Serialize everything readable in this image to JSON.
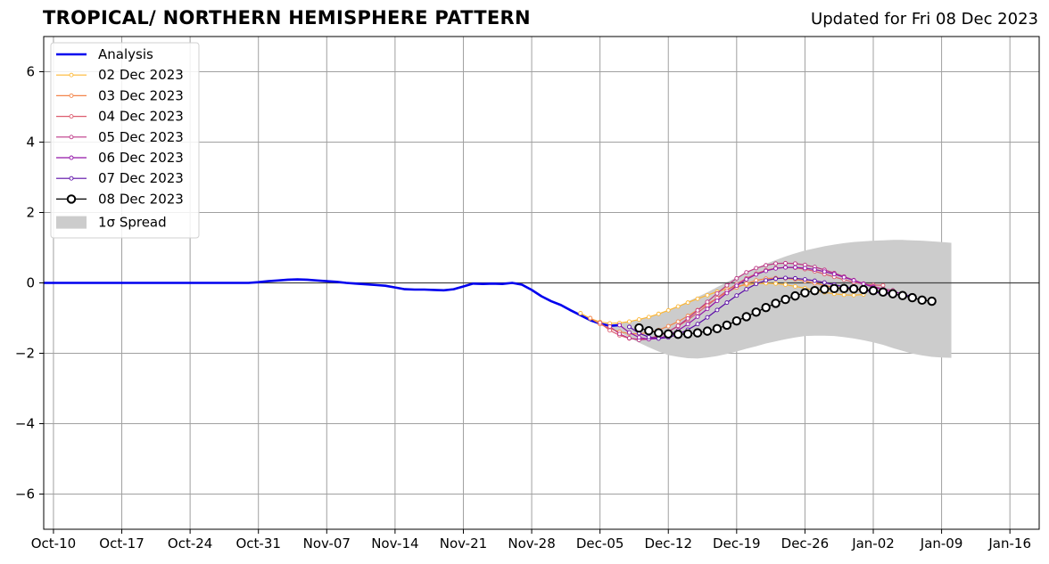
{
  "title": "TROPICAL/ NORTHERN HEMISPHERE PATTERN",
  "subtitle": "Updated for Fri 08 Dec 2023",
  "chart_data": {
    "type": "line",
    "title": "TROPICAL/ NORTHERN HEMISPHERE PATTERN",
    "xlabel": "",
    "ylabel": "",
    "x_tick_labels": [
      "Oct-10",
      "Oct-17",
      "Oct-24",
      "Oct-31",
      "Nov-07",
      "Nov-14",
      "Nov-21",
      "Nov-28",
      "Dec-05",
      "Dec-12",
      "Dec-19",
      "Dec-26",
      "Jan-02",
      "Jan-09",
      "Jan-16"
    ],
    "x_tick_days": [
      0,
      7,
      14,
      21,
      28,
      35,
      42,
      49,
      56,
      63,
      70,
      77,
      84,
      91,
      98
    ],
    "x_axis_start": "2023-10-09",
    "xlim": [
      -1,
      101
    ],
    "ylim": [
      -7,
      7
    ],
    "y_ticks": [
      -6,
      -4,
      -2,
      0,
      2,
      4,
      6
    ],
    "y_tick_labels": [
      "−6",
      "−4",
      "−2",
      "0",
      "2",
      "4",
      "6"
    ],
    "grid": true,
    "legend_position": "top-left",
    "legend": [
      {
        "label": "Analysis",
        "color": "#0000ee",
        "style": "line"
      },
      {
        "label": "02 Dec 2023",
        "color": "#fdb632",
        "style": "line-dot"
      },
      {
        "label": "03 Dec 2023",
        "color": "#f3854b",
        "style": "line-dot"
      },
      {
        "label": "04 Dec 2023",
        "color": "#dc5b6e",
        "style": "line-dot"
      },
      {
        "label": "05 Dec 2023",
        "color": "#bd3786",
        "style": "line-dot"
      },
      {
        "label": "06 Dec 2023",
        "color": "#9215a8",
        "style": "line-dot"
      },
      {
        "label": "07 Dec 2023",
        "color": "#5a0aa6",
        "style": "line-dot"
      },
      {
        "label": "08 Dec 2023",
        "color": "#000000",
        "style": "circle"
      },
      {
        "label": "1σ Spread",
        "color": "#cccccc",
        "style": "patch"
      }
    ],
    "analysis": {
      "name": "Analysis",
      "color": "#0000ee",
      "x": [
        -1,
        0,
        5,
        10,
        15,
        20,
        21,
        22,
        23,
        24,
        25,
        26,
        27,
        28,
        29,
        30,
        31,
        32,
        33,
        34,
        35,
        36,
        37,
        38,
        39,
        40,
        41,
        42,
        43,
        44,
        45,
        46,
        47,
        48,
        49,
        50,
        51,
        52,
        53,
        54,
        55,
        56,
        57,
        58
      ],
      "y": [
        0,
        0,
        0,
        0,
        0,
        0,
        0.02,
        0.05,
        0.07,
        0.09,
        0.1,
        0.09,
        0.07,
        0.05,
        0.03,
        0.0,
        -0.02,
        -0.04,
        -0.06,
        -0.08,
        -0.13,
        -0.18,
        -0.19,
        -0.19,
        -0.2,
        -0.21,
        -0.18,
        -0.1,
        -0.02,
        -0.03,
        -0.02,
        -0.03,
        0.0,
        -0.05,
        -0.2,
        -0.38,
        -0.52,
        -0.63,
        -0.78,
        -0.92,
        -1.06,
        -1.16,
        -1.22,
        -1.2
      ]
    },
    "forecasts": [
      {
        "name": "02 Dec 2023",
        "color": "#fdb632",
        "start": 54,
        "values": [
          -0.86,
          -1.01,
          -1.11,
          -1.15,
          -1.14,
          -1.1,
          -1.04,
          -0.97,
          -0.88,
          -0.78,
          -0.67,
          -0.56,
          -0.45,
          -0.35,
          -0.25,
          -0.17,
          -0.1,
          -0.05,
          -0.02,
          -0.01,
          -0.02,
          -0.05,
          -0.1,
          -0.15,
          -0.21,
          -0.27,
          -0.31,
          -0.34,
          -0.35,
          -0.33
        ]
      },
      {
        "name": "03 Dec 2023",
        "color": "#f3854b",
        "start": 55,
        "values": [
          -1.0,
          -1.17,
          -1.3,
          -1.39,
          -1.44,
          -1.45,
          -1.41,
          -1.34,
          -1.23,
          -1.1,
          -0.94,
          -0.77,
          -0.6,
          -0.43,
          -0.27,
          -0.13,
          -0.02,
          0.07,
          0.12,
          0.14,
          0.13,
          0.1,
          0.05,
          -0.01,
          -0.07,
          -0.13,
          -0.17,
          -0.2,
          -0.21,
          -0.2
        ]
      },
      {
        "name": "04 Dec 2023",
        "color": "#dc5b6e",
        "start": 56,
        "values": [
          -1.13,
          -1.35,
          -1.49,
          -1.58,
          -1.6,
          -1.58,
          -1.5,
          -1.38,
          -1.23,
          -1.05,
          -0.85,
          -0.64,
          -0.43,
          -0.22,
          -0.03,
          0.13,
          0.26,
          0.36,
          0.42,
          0.44,
          0.43,
          0.39,
          0.33,
          0.25,
          0.17,
          0.09,
          0.02,
          -0.03,
          -0.06,
          -0.07
        ]
      },
      {
        "name": "05 Dec 2023",
        "color": "#bd3786",
        "start": 57,
        "values": [
          -1.24,
          -1.45,
          -1.57,
          -1.62,
          -1.6,
          -1.52,
          -1.39,
          -1.22,
          -1.01,
          -0.78,
          -0.54,
          -0.3,
          -0.07,
          0.13,
          0.3,
          0.42,
          0.5,
          0.55,
          0.56,
          0.55,
          0.51,
          0.45,
          0.37,
          0.28,
          0.18,
          0.08,
          -0.02,
          -0.1,
          -0.17,
          -0.21
        ]
      },
      {
        "name": "06 Dec 2023",
        "color": "#9215a8",
        "start": 58,
        "values": [
          -1.2,
          -1.41,
          -1.55,
          -1.6,
          -1.58,
          -1.49,
          -1.35,
          -1.17,
          -0.96,
          -0.74,
          -0.51,
          -0.29,
          -0.08,
          0.1,
          0.24,
          0.34,
          0.41,
          0.44,
          0.44,
          0.42,
          0.38,
          0.32,
          0.25,
          0.16,
          0.07,
          -0.03,
          -0.12,
          -0.2,
          -0.26,
          -0.3
        ]
      },
      {
        "name": "07 Dec 2023",
        "color": "#5a0aa6",
        "start": 59,
        "values": [
          -1.25,
          -1.43,
          -1.54,
          -1.58,
          -1.55,
          -1.46,
          -1.33,
          -1.17,
          -0.98,
          -0.77,
          -0.56,
          -0.36,
          -0.18,
          -0.03,
          0.07,
          0.12,
          0.14,
          0.13,
          0.1,
          0.06,
          0.01,
          -0.05,
          -0.11,
          -0.16,
          -0.21,
          -0.26,
          -0.3,
          -0.33,
          -0.35,
          -0.36
        ]
      }
    ],
    "latest": {
      "name": "08 Dec 2023",
      "start": 60,
      "values": [
        -1.28,
        -1.36,
        -1.42,
        -1.45,
        -1.46,
        -1.45,
        -1.42,
        -1.37,
        -1.3,
        -1.2,
        -1.08,
        -0.96,
        -0.83,
        -0.7,
        -0.58,
        -0.47,
        -0.37,
        -0.28,
        -0.22,
        -0.18,
        -0.16,
        -0.16,
        -0.17,
        -0.19,
        -0.22,
        -0.26,
        -0.31,
        -0.36,
        -0.42,
        -0.49,
        -0.52
      ]
    },
    "spread": {
      "label": "1σ Spread",
      "start": 57,
      "upper": [
        -1.2,
        -1.16,
        -1.1,
        -1.04,
        -0.96,
        -0.87,
        -0.77,
        -0.66,
        -0.53,
        -0.4,
        -0.27,
        -0.12,
        0.02,
        0.16,
        0.29,
        0.42,
        0.54,
        0.65,
        0.75,
        0.84,
        0.92,
        0.98,
        1.04,
        1.09,
        1.13,
        1.16,
        1.18,
        1.2,
        1.21,
        1.22,
        1.22,
        1.21,
        1.2,
        1.18,
        1.16,
        1.14
      ],
      "lower": [
        -1.28,
        -1.4,
        -1.55,
        -1.7,
        -1.83,
        -1.95,
        -2.05,
        -2.1,
        -2.14,
        -2.15,
        -2.12,
        -2.08,
        -2.02,
        -1.95,
        -1.87,
        -1.8,
        -1.72,
        -1.66,
        -1.6,
        -1.55,
        -1.51,
        -1.5,
        -1.5,
        -1.51,
        -1.54,
        -1.58,
        -1.63,
        -1.69,
        -1.76,
        -1.85,
        -1.93,
        -2.01,
        -2.06,
        -2.1,
        -2.12,
        -2.13
      ]
    }
  }
}
